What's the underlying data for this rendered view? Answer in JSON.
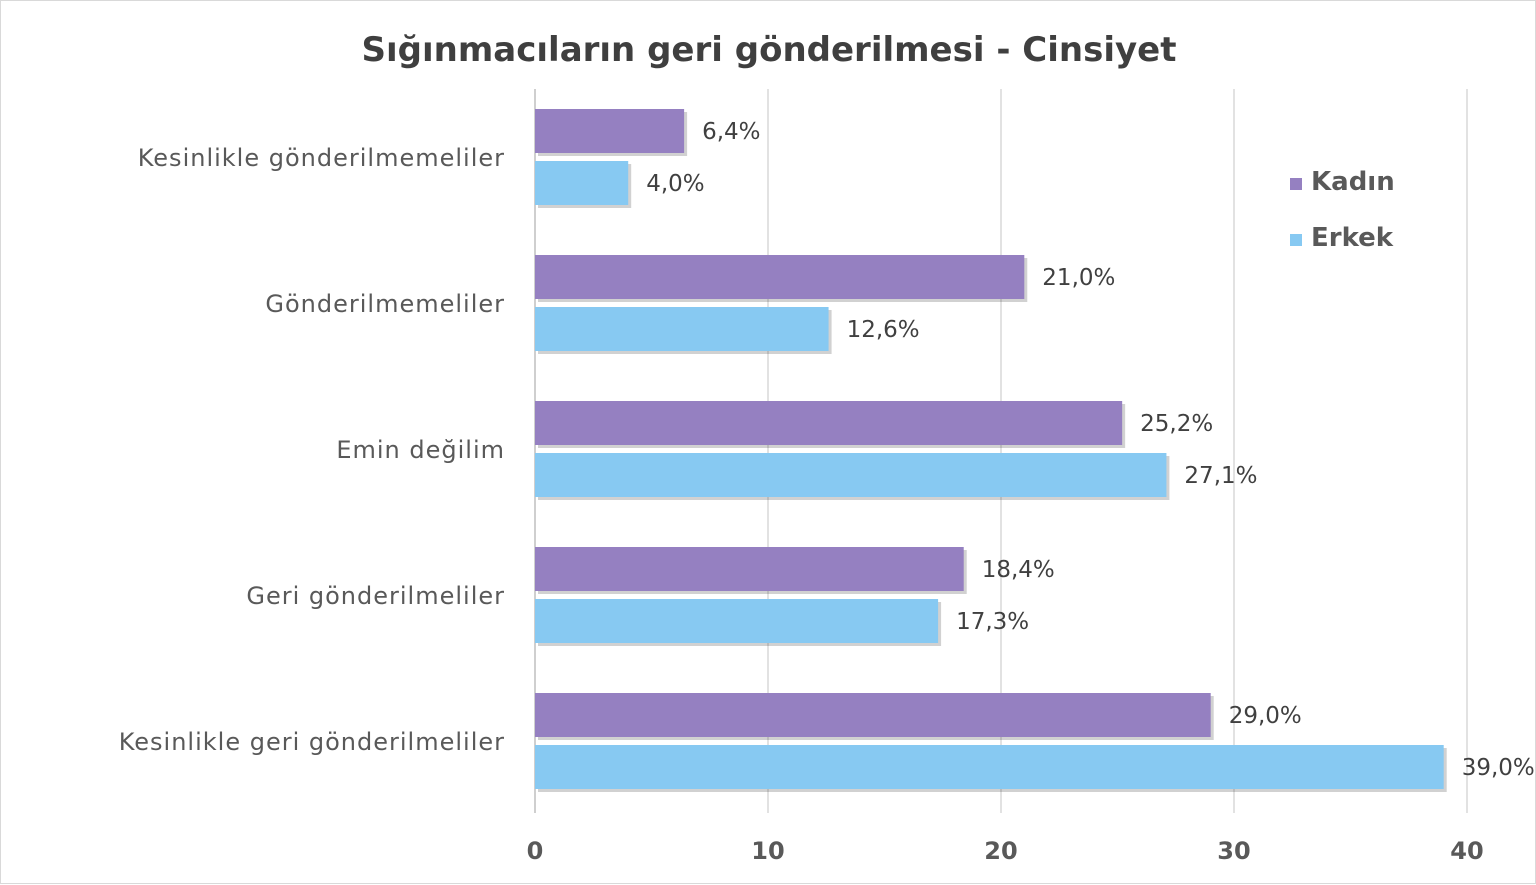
{
  "chart_data": {
    "type": "bar",
    "orientation": "horizontal",
    "title": "Sığınmacıların geri gönderilmesi - Cinsiyet",
    "categories": [
      "Kesinlikle gönderilmemeliler",
      "Gönderilmemeliler",
      "Emin değilim",
      "Geri gönderilmeliler",
      "Kesinlikle geri gönderilmeliler"
    ],
    "series": [
      {
        "name": "Kadın",
        "color": "#9580c1",
        "values": [
          6.4,
          21.0,
          25.2,
          18.4,
          29.0
        ],
        "labels": [
          "6,4%",
          "21,0%",
          "25,2%",
          "18,4%",
          "29,0%"
        ]
      },
      {
        "name": "Erkek",
        "color": "#87c9f2",
        "values": [
          4.0,
          12.6,
          27.1,
          17.3,
          39.0
        ],
        "labels": [
          "4,0%",
          "12,6%",
          "27,1%",
          "17,3%",
          "39,0%"
        ]
      }
    ],
    "xlim": [
      0,
      40
    ],
    "xticks": [
      "0",
      "10",
      "20",
      "30",
      "40"
    ],
    "grid": true,
    "legend_position": "top-right"
  }
}
